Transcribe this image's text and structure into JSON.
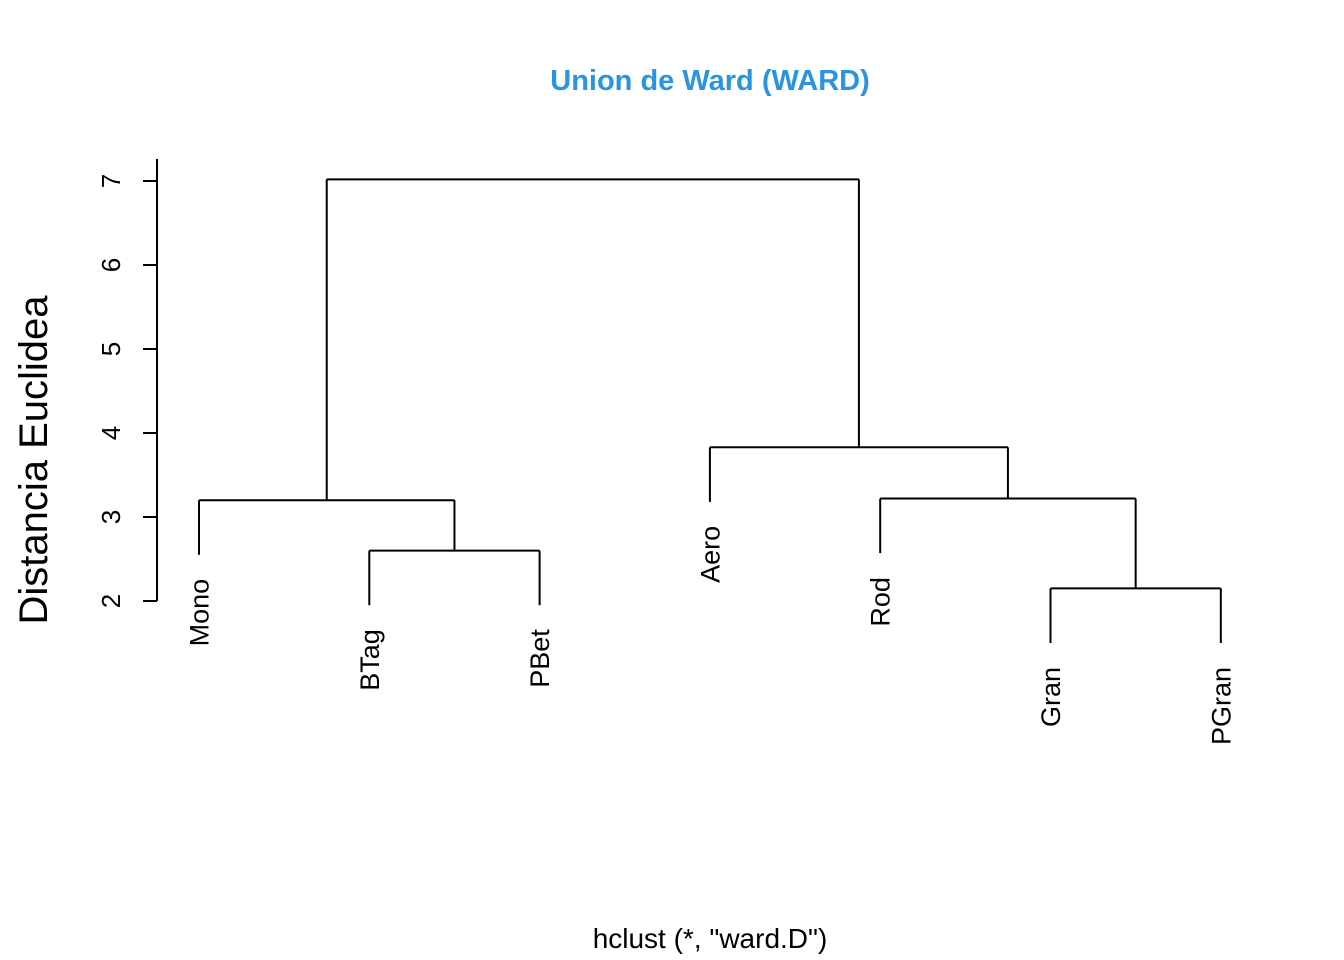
{
  "chart_data": {
    "type": "dendrogram",
    "title": "Union de Ward (WARD)",
    "title_color": "#2a94e0",
    "ylabel": "Distancia Euclidea",
    "xlabel": "hclust (*, \"ward.D\")",
    "ylim": [
      2,
      7
    ],
    "yticks": [
      2,
      3,
      4,
      5,
      6,
      7
    ],
    "leaves": [
      "Mono",
      "BTag",
      "PBet",
      "Aero",
      "Rod",
      "Gran",
      "PGran"
    ],
    "merges": [
      {
        "left": 2,
        "right": 3,
        "height": 2.6
      },
      {
        "left": 6,
        "right": 7,
        "height": 2.15
      },
      {
        "left": 1,
        "right": -1,
        "height": 3.2
      },
      {
        "left": 5,
        "right": -2,
        "height": 3.22
      },
      {
        "left": 4,
        "right": -4,
        "height": 3.83
      },
      {
        "left": -3,
        "right": -5,
        "height": 7.02
      }
    ],
    "hang_height": 0.65
  }
}
